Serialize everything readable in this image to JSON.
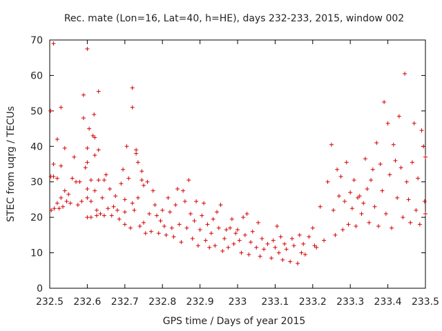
{
  "chart_data": {
    "type": "scatter",
    "title": "Rec. mate (Lon=16, Lat=40, h=HE), days 232-233, 2015, window 002",
    "xlabel": "GPS time / Days of year 2015",
    "ylabel": "STEC from uqrg / TECUs",
    "xlim": [
      232.5,
      233.5
    ],
    "ylim": [
      0,
      70
    ],
    "xticks": [
      "232.5",
      "232.6",
      "232.7",
      "232.8",
      "232.9",
      "233",
      "233.1",
      "233.2",
      "233.3",
      "233.4",
      "233.5"
    ],
    "yticks": [
      "0",
      "10",
      "20",
      "30",
      "40",
      "50",
      "60",
      "70"
    ],
    "grid": false,
    "marker": "plus",
    "color": "#d40000",
    "points": [
      [
        232.502,
        50.0
      ],
      [
        232.503,
        31.5
      ],
      [
        232.504,
        22.0
      ],
      [
        232.51,
        69.0
      ],
      [
        232.51,
        35.0
      ],
      [
        232.51,
        31.5
      ],
      [
        232.512,
        22.5
      ],
      [
        232.52,
        42.0
      ],
      [
        232.52,
        31.0
      ],
      [
        232.52,
        24.0
      ],
      [
        232.525,
        22.5
      ],
      [
        232.53,
        51.0
      ],
      [
        232.53,
        34.5
      ],
      [
        232.53,
        25.5
      ],
      [
        232.535,
        23.0
      ],
      [
        232.54,
        39.5
      ],
      [
        232.54,
        27.5
      ],
      [
        232.545,
        24.5
      ],
      [
        232.55,
        26.5
      ],
      [
        232.555,
        24.0
      ],
      [
        232.56,
        31.0
      ],
      [
        232.565,
        37.0
      ],
      [
        232.57,
        30.0
      ],
      [
        232.575,
        23.5
      ],
      [
        232.58,
        30.0
      ],
      [
        232.585,
        24.5
      ],
      [
        232.59,
        48.0
      ],
      [
        232.59,
        54.5
      ],
      [
        232.595,
        34.0
      ],
      [
        232.6,
        67.5
      ],
      [
        232.6,
        39.5
      ],
      [
        232.6,
        35.5
      ],
      [
        232.6,
        28.0
      ],
      [
        232.6,
        25.5
      ],
      [
        232.6,
        20.0
      ],
      [
        232.605,
        45.0
      ],
      [
        232.61,
        30.5
      ],
      [
        232.61,
        24.5
      ],
      [
        232.61,
        20.0
      ],
      [
        232.615,
        43.0
      ],
      [
        232.618,
        49.0
      ],
      [
        232.62,
        42.5
      ],
      [
        232.62,
        37.5
      ],
      [
        232.62,
        27.5
      ],
      [
        232.625,
        22.0
      ],
      [
        232.625,
        20.5
      ],
      [
        232.63,
        55.5
      ],
      [
        232.63,
        39.0
      ],
      [
        232.63,
        30.5
      ],
      [
        232.635,
        21.0
      ],
      [
        232.64,
        25.5
      ],
      [
        232.645,
        30.5
      ],
      [
        232.645,
        20.5
      ],
      [
        232.65,
        32.0
      ],
      [
        232.655,
        22.5
      ],
      [
        232.66,
        28.0
      ],
      [
        232.665,
        20.5
      ],
      [
        232.67,
        23.0
      ],
      [
        232.675,
        26.0
      ],
      [
        232.68,
        22.0
      ],
      [
        232.685,
        19.5
      ],
      [
        232.69,
        29.5
      ],
      [
        232.695,
        33.5
      ],
      [
        232.7,
        25.0
      ],
      [
        232.7,
        21.5
      ],
      [
        232.7,
        18.0
      ],
      [
        232.705,
        40.0
      ],
      [
        232.71,
        31.0
      ],
      [
        232.715,
        17.0
      ],
      [
        232.72,
        51.0
      ],
      [
        232.72,
        56.5
      ],
      [
        232.72,
        24.0
      ],
      [
        232.725,
        22.0
      ],
      [
        232.73,
        38.0
      ],
      [
        232.73,
        39.0
      ],
      [
        232.735,
        35.5
      ],
      [
        232.735,
        25.5
      ],
      [
        232.74,
        17.5
      ],
      [
        232.745,
        33.0
      ],
      [
        232.745,
        30.5
      ],
      [
        232.75,
        29.0
      ],
      [
        232.75,
        18.5
      ],
      [
        232.755,
        15.5
      ],
      [
        232.76,
        30.0
      ],
      [
        232.765,
        21.0
      ],
      [
        232.77,
        16.0
      ],
      [
        232.775,
        27.5
      ],
      [
        232.78,
        23.5
      ],
      [
        232.785,
        20.5
      ],
      [
        232.79,
        15.5
      ],
      [
        232.795,
        19.0
      ],
      [
        232.8,
        22.0
      ],
      [
        232.805,
        17.5
      ],
      [
        232.81,
        15.0
      ],
      [
        232.815,
        25.5
      ],
      [
        232.82,
        21.5
      ],
      [
        232.825,
        17.0
      ],
      [
        232.83,
        14.5
      ],
      [
        232.835,
        23.5
      ],
      [
        232.84,
        28.0
      ],
      [
        232.845,
        18.0
      ],
      [
        232.85,
        13.0
      ],
      [
        232.855,
        27.5
      ],
      [
        232.86,
        24.5
      ],
      [
        232.865,
        17.0
      ],
      [
        232.87,
        30.5
      ],
      [
        232.875,
        21.0
      ],
      [
        232.88,
        14.0
      ],
      [
        232.885,
        19.0
      ],
      [
        232.89,
        24.5
      ],
      [
        232.895,
        12.0
      ],
      [
        232.9,
        16.5
      ],
      [
        232.905,
        20.5
      ],
      [
        232.91,
        24.0
      ],
      [
        232.915,
        13.5
      ],
      [
        232.92,
        18.0
      ],
      [
        232.925,
        11.5
      ],
      [
        232.93,
        15.5
      ],
      [
        232.935,
        19.5
      ],
      [
        232.94,
        12.0
      ],
      [
        232.945,
        21.5
      ],
      [
        232.95,
        17.0
      ],
      [
        232.955,
        23.5
      ],
      [
        232.96,
        10.5
      ],
      [
        232.965,
        14.0
      ],
      [
        232.97,
        16.5
      ],
      [
        232.975,
        11.5
      ],
      [
        232.98,
        17.0
      ],
      [
        232.985,
        19.5
      ],
      [
        232.99,
        12.5
      ],
      [
        232.995,
        15.5
      ],
      [
        233.0,
        16.5
      ],
      [
        233.005,
        13.5
      ],
      [
        233.01,
        10.0
      ],
      [
        233.015,
        20.0
      ],
      [
        233.02,
        15.0
      ],
      [
        233.025,
        21.0
      ],
      [
        233.03,
        9.5
      ],
      [
        233.035,
        13.0
      ],
      [
        233.04,
        16.0
      ],
      [
        233.05,
        11.5
      ],
      [
        233.055,
        18.5
      ],
      [
        233.06,
        9.0
      ],
      [
        233.065,
        14.0
      ],
      [
        233.07,
        11.0
      ],
      [
        233.08,
        12.5
      ],
      [
        233.09,
        8.5
      ],
      [
        233.095,
        13.5
      ],
      [
        233.1,
        11.5
      ],
      [
        233.105,
        17.5
      ],
      [
        233.11,
        10.0
      ],
      [
        233.115,
        14.5
      ],
      [
        233.12,
        8.0
      ],
      [
        233.125,
        12.5
      ],
      [
        233.13,
        11.0
      ],
      [
        233.14,
        7.5
      ],
      [
        233.145,
        14.0
      ],
      [
        233.15,
        12.0
      ],
      [
        233.16,
        7.0
      ],
      [
        233.165,
        15.0
      ],
      [
        233.17,
        10.0
      ],
      [
        233.175,
        12.5
      ],
      [
        233.18,
        9.5
      ],
      [
        233.19,
        14.5
      ],
      [
        233.2,
        17.0
      ],
      [
        233.205,
        12.0
      ],
      [
        233.21,
        11.5
      ],
      [
        233.22,
        23.0
      ],
      [
        233.23,
        13.5
      ],
      [
        233.24,
        30.0
      ],
      [
        233.25,
        40.5
      ],
      [
        233.255,
        22.0
      ],
      [
        233.26,
        15.0
      ],
      [
        233.265,
        33.5
      ],
      [
        233.27,
        26.0
      ],
      [
        233.275,
        31.5
      ],
      [
        233.28,
        16.5
      ],
      [
        233.285,
        24.5
      ],
      [
        233.29,
        35.5
      ],
      [
        233.295,
        18.0
      ],
      [
        233.3,
        27.0
      ],
      [
        233.305,
        22.5
      ],
      [
        233.31,
        30.5
      ],
      [
        233.315,
        17.5
      ],
      [
        233.32,
        25.5
      ],
      [
        233.325,
        26.0
      ],
      [
        233.33,
        21.0
      ],
      [
        233.335,
        24.0
      ],
      [
        233.34,
        36.5
      ],
      [
        233.345,
        28.0
      ],
      [
        233.35,
        18.5
      ],
      [
        233.355,
        30.5
      ],
      [
        233.36,
        33.5
      ],
      [
        233.365,
        23.0
      ],
      [
        233.37,
        41.0
      ],
      [
        233.375,
        17.5
      ],
      [
        233.38,
        35.0
      ],
      [
        233.385,
        27.5
      ],
      [
        233.39,
        52.5
      ],
      [
        233.395,
        21.0
      ],
      [
        233.4,
        46.5
      ],
      [
        233.405,
        32.0
      ],
      [
        233.41,
        17.0
      ],
      [
        233.415,
        40.5
      ],
      [
        233.42,
        36.0
      ],
      [
        233.425,
        25.5
      ],
      [
        233.43,
        48.5
      ],
      [
        233.435,
        34.0
      ],
      [
        233.44,
        20.0
      ],
      [
        233.445,
        60.5
      ],
      [
        233.45,
        30.0
      ],
      [
        233.455,
        25.0
      ],
      [
        233.46,
        18.5
      ],
      [
        233.465,
        35.5
      ],
      [
        233.47,
        46.5
      ],
      [
        233.475,
        22.0
      ],
      [
        233.48,
        31.0
      ],
      [
        233.485,
        18.0
      ],
      [
        233.49,
        44.5
      ],
      [
        233.495,
        40.0
      ],
      [
        233.498,
        24.5
      ],
      [
        233.5,
        37.0
      ],
      [
        233.5,
        21.0
      ]
    ]
  }
}
